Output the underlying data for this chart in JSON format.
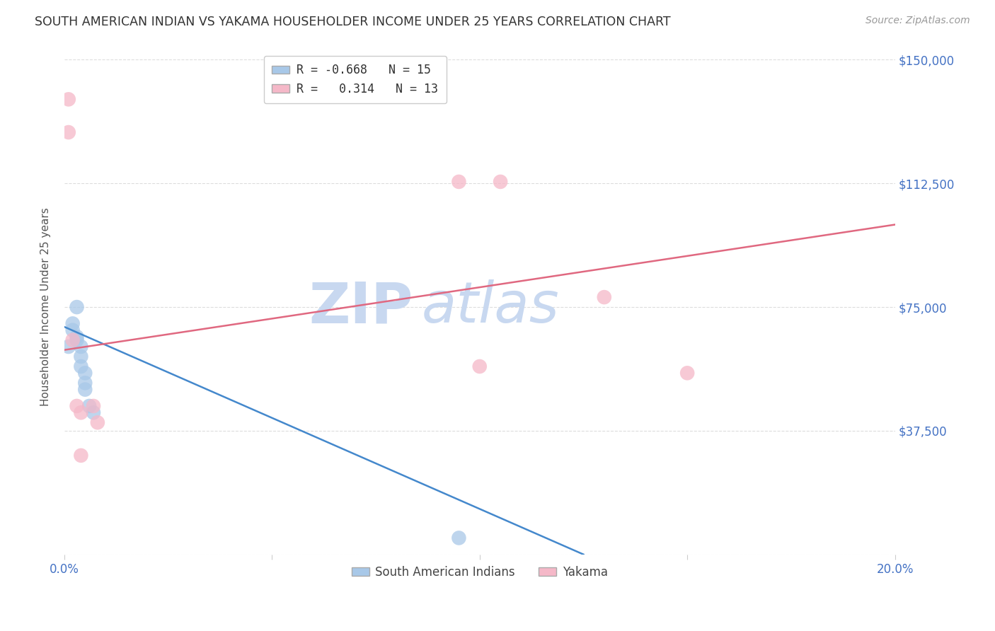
{
  "title": "SOUTH AMERICAN INDIAN VS YAKAMA HOUSEHOLDER INCOME UNDER 25 YEARS CORRELATION CHART",
  "source": "Source: ZipAtlas.com",
  "ylabel": "Householder Income Under 25 years",
  "xlim": [
    0.0,
    0.2
  ],
  "ylim": [
    0,
    150000
  ],
  "yticks": [
    0,
    37500,
    75000,
    112500,
    150000
  ],
  "xticks": [
    0.0,
    0.05,
    0.1,
    0.15,
    0.2
  ],
  "ytick_labels_right": [
    "",
    "$37,500",
    "$75,000",
    "$112,500",
    "$150,000"
  ],
  "blue_scatter_x": [
    0.001,
    0.002,
    0.002,
    0.003,
    0.003,
    0.003,
    0.004,
    0.004,
    0.004,
    0.005,
    0.005,
    0.005,
    0.006,
    0.007,
    0.095
  ],
  "blue_scatter_y": [
    63000,
    70000,
    68000,
    66000,
    75000,
    65000,
    63000,
    60000,
    57000,
    55000,
    52000,
    50000,
    45000,
    43000,
    5000
  ],
  "pink_scatter_x": [
    0.001,
    0.001,
    0.002,
    0.003,
    0.004,
    0.004,
    0.007,
    0.008,
    0.095,
    0.105,
    0.13,
    0.15,
    0.1
  ],
  "pink_scatter_y": [
    138000,
    128000,
    65000,
    45000,
    43000,
    30000,
    45000,
    40000,
    113000,
    113000,
    78000,
    55000,
    57000
  ],
  "blue_line_x": [
    0.0,
    0.125
  ],
  "blue_line_y": [
    69000,
    0
  ],
  "pink_line_x": [
    0.0,
    0.2
  ],
  "pink_line_y": [
    62000,
    100000
  ],
  "blue_color": "#A8C8E8",
  "pink_color": "#F5B8C8",
  "blue_line_color": "#4488CC",
  "pink_line_color": "#E06880",
  "legend_blue_label": "R = -0.668   N = 15",
  "legend_pink_label": "R =   0.314   N = 13",
  "watermark_zip": "ZIP",
  "watermark_atlas": "atlas",
  "watermark_color": "#C8D8F0",
  "title_color": "#333333",
  "axis_label_color": "#555555",
  "right_axis_color": "#4472C4",
  "grid_color": "#DDDDDD",
  "background_color": "#FFFFFF",
  "legend_label_blue": "South American Indians",
  "legend_label_pink": "Yakama"
}
